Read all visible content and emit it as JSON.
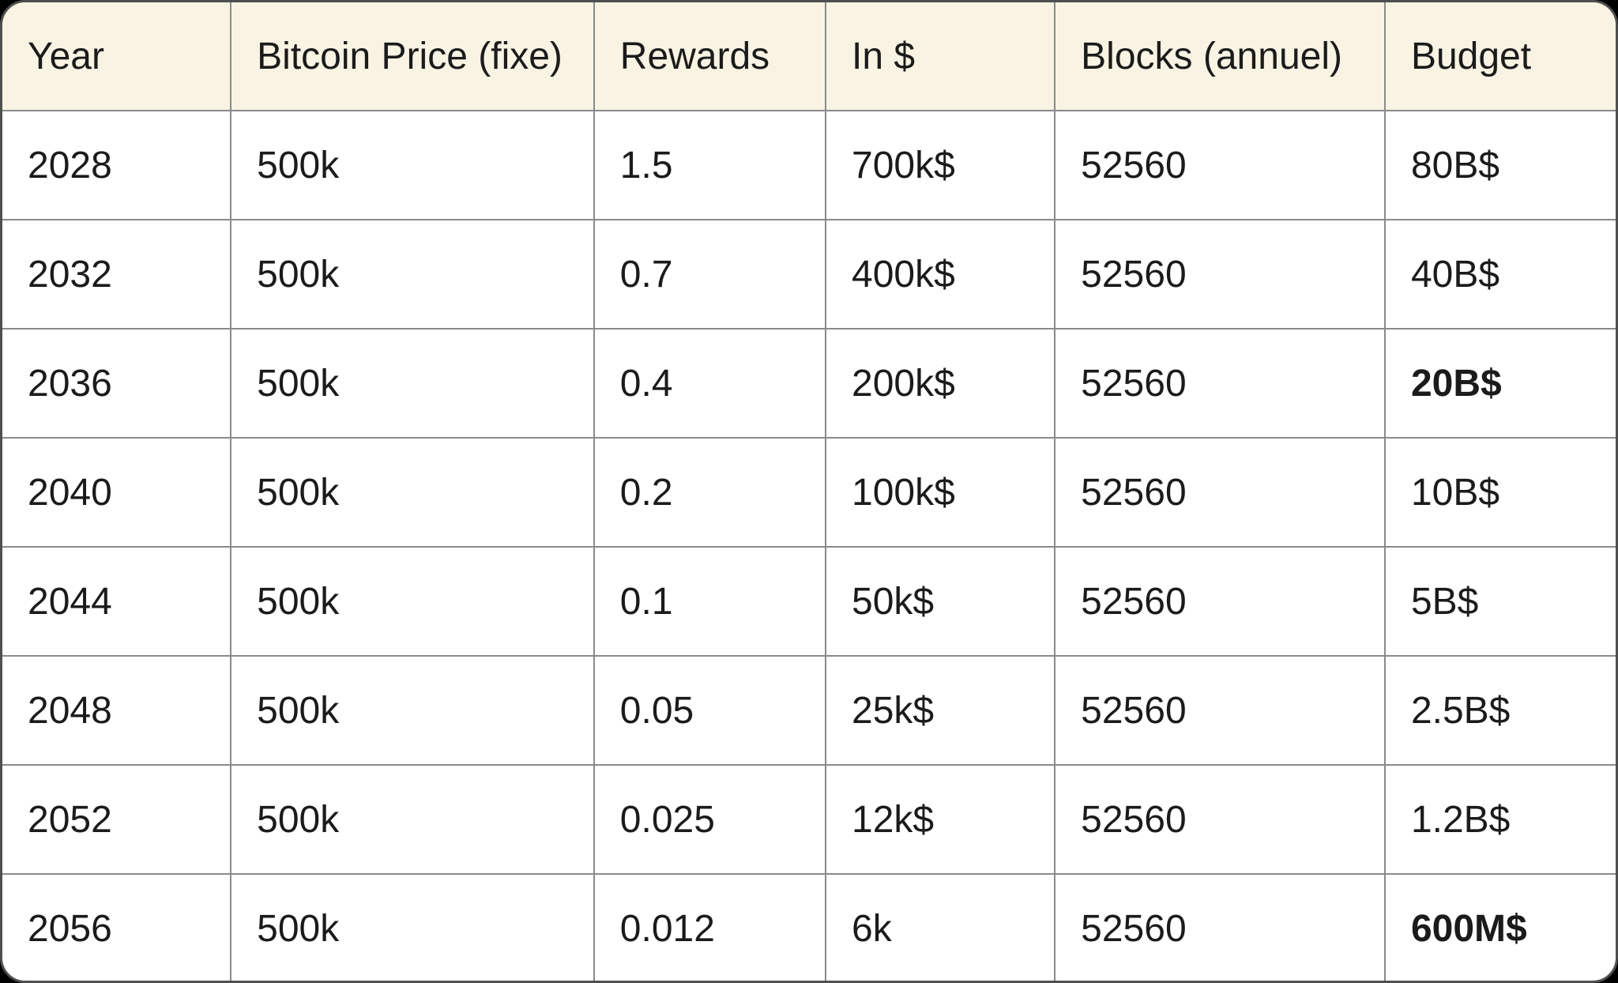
{
  "style": {
    "page_background": "#000000",
    "header_bg": "#f8f3e3",
    "body_bg": "#ffffff",
    "grid_color": "#8a8a8a",
    "outer_border_color": "#4f4f4f",
    "text_color": "#1b1b1b",
    "col_widths_pct": [
      14.16,
      22.51,
      14.36,
      14.21,
      20.46,
      14.3
    ]
  },
  "chart_data": {
    "type": "table",
    "columns": [
      "Year",
      "Bitcoin Price (fixe)",
      "Rewards",
      "In $",
      "Blocks (annuel)",
      "Budget"
    ],
    "rows": [
      [
        "2028",
        "500k",
        "1.5",
        "700k$",
        "52560",
        "80B$"
      ],
      [
        "2032",
        "500k",
        "0.7",
        "400k$",
        "52560",
        "40B$"
      ],
      [
        "2036",
        "500k",
        "0.4",
        "200k$",
        "52560",
        "20B$"
      ],
      [
        "2040",
        "500k",
        "0.2",
        "100k$",
        "52560",
        "10B$"
      ],
      [
        "2044",
        "500k",
        "0.1",
        "50k$",
        "52560",
        "5B$"
      ],
      [
        "2048",
        "500k",
        "0.05",
        "25k$",
        "52560",
        "2.5B$"
      ],
      [
        "2052",
        "500k",
        "0.025",
        "12k$",
        "52560",
        "1.2B$"
      ],
      [
        "2056",
        "500k",
        "0.012",
        "6k",
        "52560",
        "600M$"
      ]
    ],
    "bold_cells": [
      [
        2,
        5
      ],
      [
        7,
        5
      ]
    ],
    "layout": "header row with cream background, 8 white body rows, gray grid, rounded outer border"
  }
}
